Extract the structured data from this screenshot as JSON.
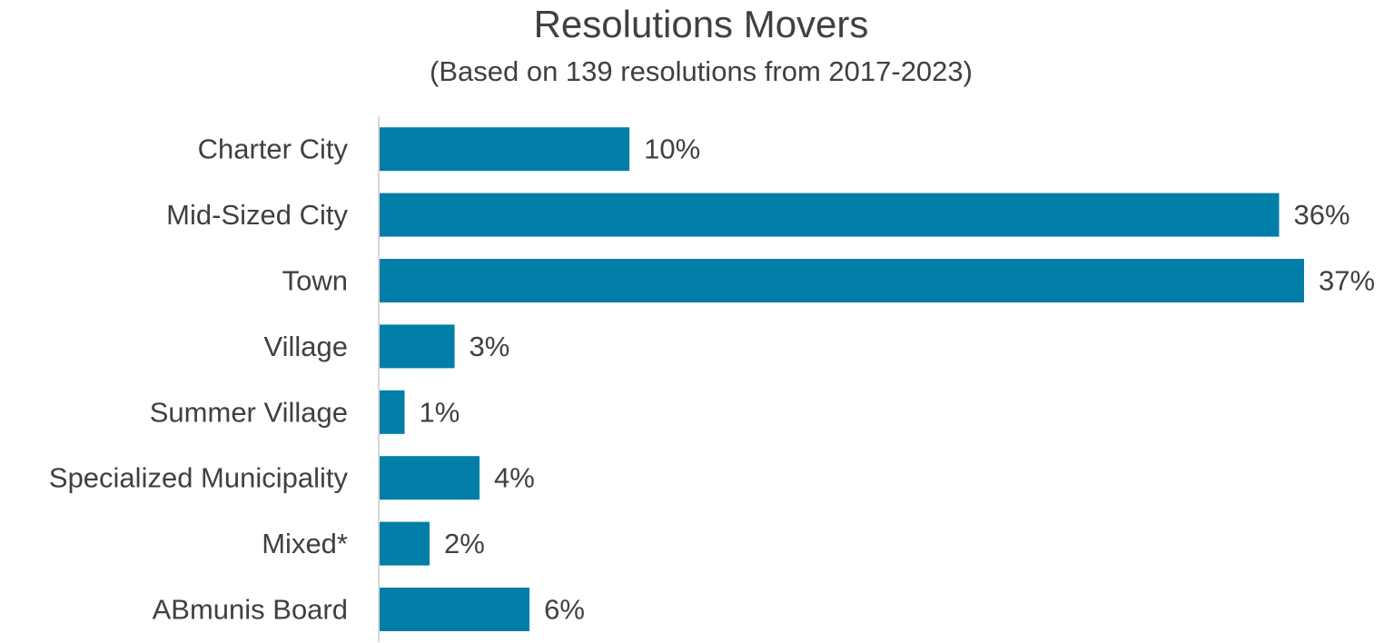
{
  "chart_data": {
    "type": "bar",
    "orientation": "horizontal",
    "title": "Resolutions Movers",
    "subtitle": "(Based on 139 resolutions from 2017-2023)",
    "categories": [
      "Charter City",
      "Mid-Sized City",
      "Town",
      "Village",
      "Summer Village",
      "Specialized Municipality",
      "Mixed*",
      "ABmunis Board"
    ],
    "values": [
      10,
      36,
      37,
      3,
      1,
      4,
      2,
      6
    ],
    "data_labels": [
      "10%",
      "36%",
      "37%",
      "3%",
      "1%",
      "4%",
      "2%",
      "6%"
    ],
    "value_unit": "%",
    "xlabel": "",
    "ylabel": "",
    "xlim": [
      0,
      37
    ],
    "grid": false,
    "legend": "none",
    "bar_color": "#007EA7",
    "axis_color": "#D9D9D9",
    "text_color": "#404040"
  }
}
